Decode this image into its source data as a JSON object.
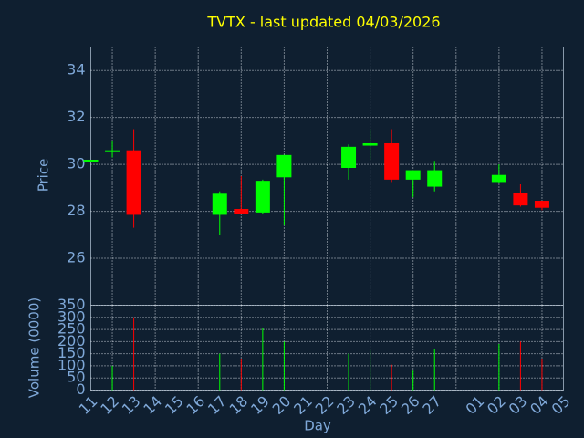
{
  "chart_data": {
    "type": "candlestick",
    "title": "TVTX - last updated 04/03/2026",
    "x_label": "Day",
    "y_label": "Price",
    "volume_label": "Volume (0000)",
    "categories": [
      "11",
      "12",
      "13",
      "14",
      "15",
      "16",
      "17",
      "18",
      "19",
      "20",
      "21",
      "22",
      "23",
      "24",
      "25",
      "26",
      "27",
      null,
      "01",
      "02",
      "03",
      "04",
      "05"
    ],
    "open": [
      30.15,
      30.55,
      30.6,
      null,
      null,
      null,
      27.85,
      28.1,
      27.95,
      29.45,
      null,
      null,
      29.85,
      30.8,
      30.9,
      29.35,
      29.05,
      null,
      null,
      29.25,
      28.8,
      28.45,
      null
    ],
    "high": [
      30.2,
      31.0,
      31.5,
      null,
      null,
      null,
      28.85,
      29.5,
      29.35,
      30.4,
      null,
      null,
      30.85,
      31.5,
      31.5,
      29.75,
      30.15,
      null,
      null,
      30.0,
      29.15,
      28.45,
      null
    ],
    "low": [
      30.1,
      30.3,
      27.3,
      null,
      null,
      null,
      27.0,
      27.9,
      27.9,
      27.4,
      null,
      null,
      29.35,
      30.2,
      29.25,
      28.6,
      28.85,
      null,
      null,
      29.2,
      28.2,
      28.05,
      null
    ],
    "close": [
      30.2,
      30.6,
      27.85,
      null,
      null,
      null,
      28.75,
      27.9,
      29.3,
      30.4,
      null,
      null,
      30.75,
      30.9,
      29.35,
      29.75,
      29.75,
      null,
      null,
      29.55,
      28.25,
      28.15,
      null
    ],
    "volume": [
      null,
      100,
      300,
      null,
      null,
      null,
      150,
      130,
      255,
      200,
      null,
      null,
      150,
      165,
      105,
      80,
      170,
      null,
      null,
      190,
      200,
      130,
      null
    ],
    "up_color": "#00ff00",
    "down_color": "#ff0000",
    "ylim": [
      24,
      35
    ],
    "yticks": [
      26,
      28,
      30,
      32,
      34
    ],
    "volume_ylim": [
      0,
      350
    ],
    "volume_yticks": [
      0,
      50,
      100,
      150,
      200,
      250,
      300,
      350
    ],
    "grid": true
  }
}
